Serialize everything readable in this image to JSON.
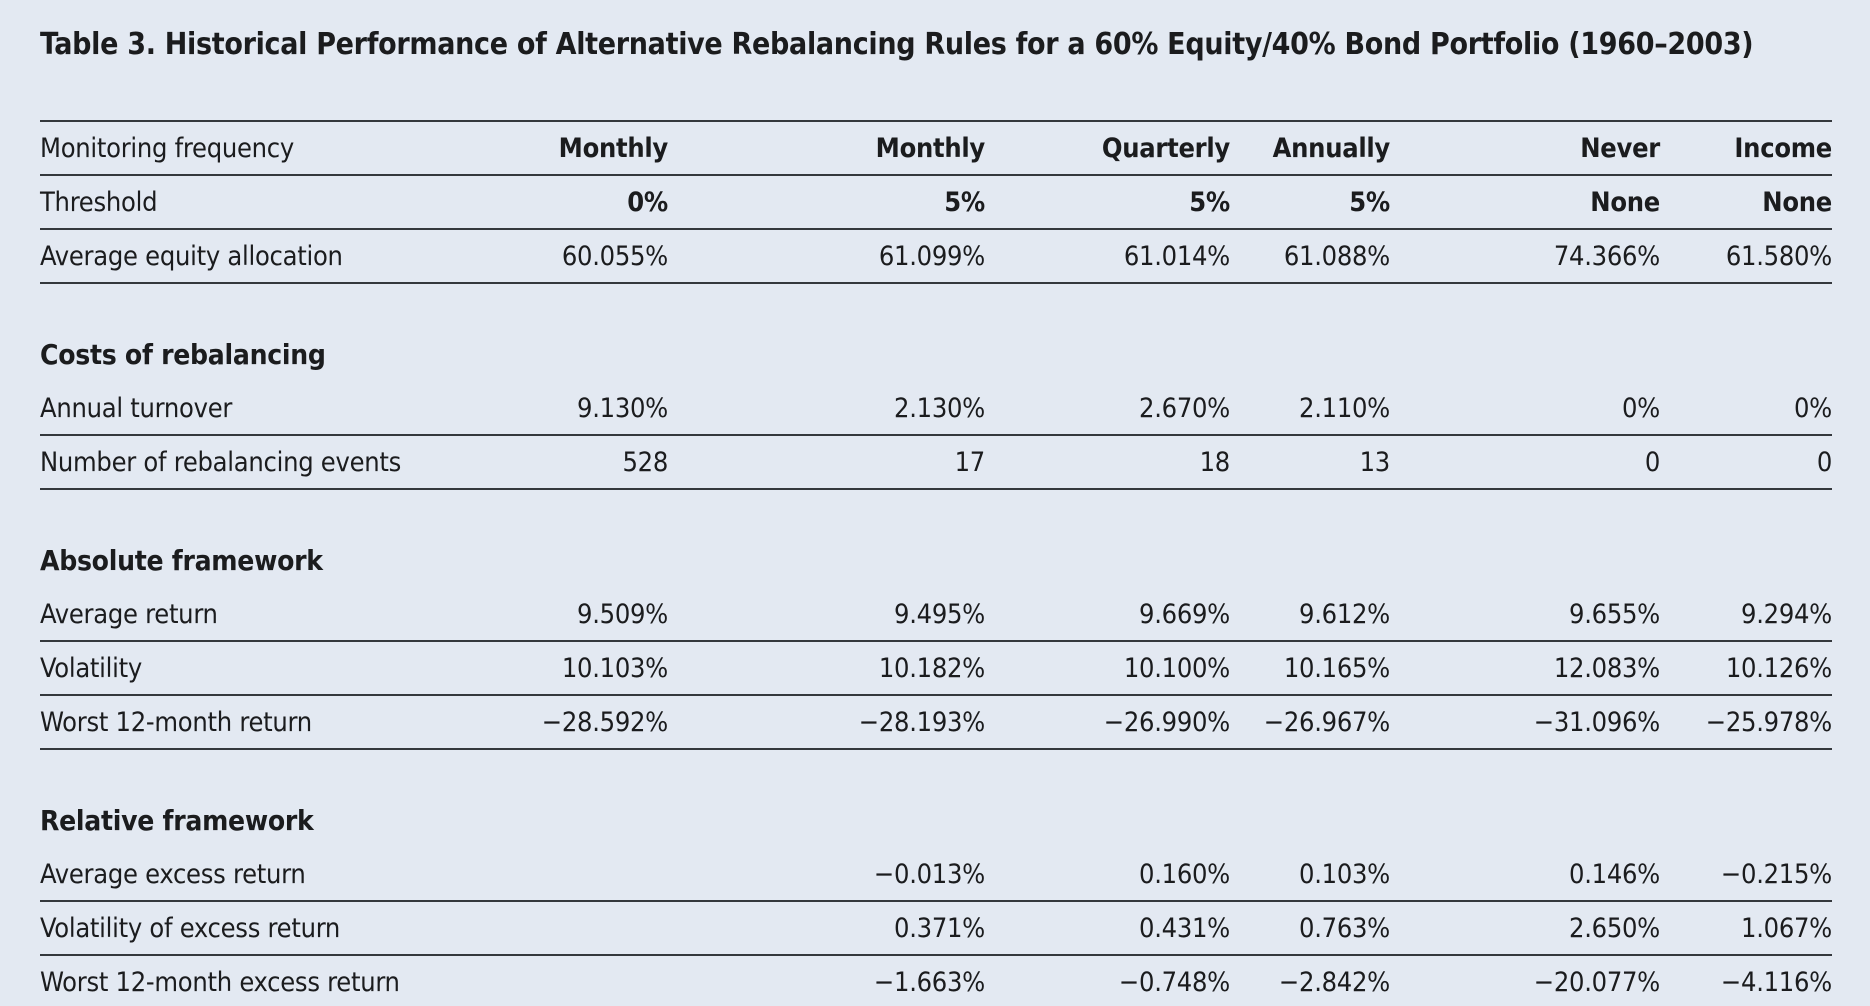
{
  "title": "Table 3. Historical Performance of Alternative Rebalancing Rules for a 60% Equity/40% Bond Portfolio (1960–2003)",
  "colors": {
    "background": "#e3e9f2",
    "text": "#1b1c1e",
    "rule": "#34383d"
  },
  "table": {
    "header_rows": [
      {
        "label": "Monitoring frequency",
        "values": [
          "Monthly",
          "Monthly",
          "Quarterly",
          "Annually",
          "Never",
          "Income"
        ]
      },
      {
        "label": "Threshold",
        "values": [
          "0%",
          "5%",
          "5%",
          "5%",
          "None",
          "None"
        ]
      },
      {
        "label": "Average equity allocation",
        "values": [
          "60.055%",
          "61.099%",
          "61.014%",
          "61.088%",
          "74.366%",
          "61.580%"
        ]
      }
    ],
    "sections": [
      {
        "heading": "Costs of rebalancing",
        "rows": [
          {
            "label": "Annual turnover",
            "values": [
              "9.130%",
              "2.130%",
              "2.670%",
              "2.110%",
              "0%",
              "0%"
            ]
          },
          {
            "label": "Number of rebalancing events",
            "values": [
              "528",
              "17",
              "18",
              "13",
              "0",
              "0"
            ]
          }
        ]
      },
      {
        "heading": "Absolute framework",
        "rows": [
          {
            "label": "Average return",
            "values": [
              "9.509%",
              "9.495%",
              "9.669%",
              "9.612%",
              "9.655%",
              "9.294%"
            ]
          },
          {
            "label": "Volatility",
            "values": [
              "10.103%",
              "10.182%",
              "10.100%",
              "10.165%",
              "12.083%",
              "10.126%"
            ]
          },
          {
            "label": "Worst 12-month return",
            "values": [
              "−28.592%",
              "−28.193%",
              "−26.990%",
              "−26.967%",
              "−31.096%",
              "−25.978%"
            ]
          }
        ]
      },
      {
        "heading": "Relative framework",
        "rows": [
          {
            "label": "Average excess return",
            "values": [
              "",
              "−0.013%",
              "0.160%",
              "0.103%",
              "0.146%",
              "−0.215%"
            ]
          },
          {
            "label": "Volatility of excess return",
            "values": [
              "",
              "0.371%",
              "0.431%",
              "0.763%",
              "2.650%",
              "1.067%"
            ]
          },
          {
            "label": "Worst 12-month excess return",
            "values": [
              "",
              "−1.663%",
              "−0.748%",
              "−2.842%",
              "−20.077%",
              "−4.116%"
            ]
          }
        ]
      }
    ]
  }
}
